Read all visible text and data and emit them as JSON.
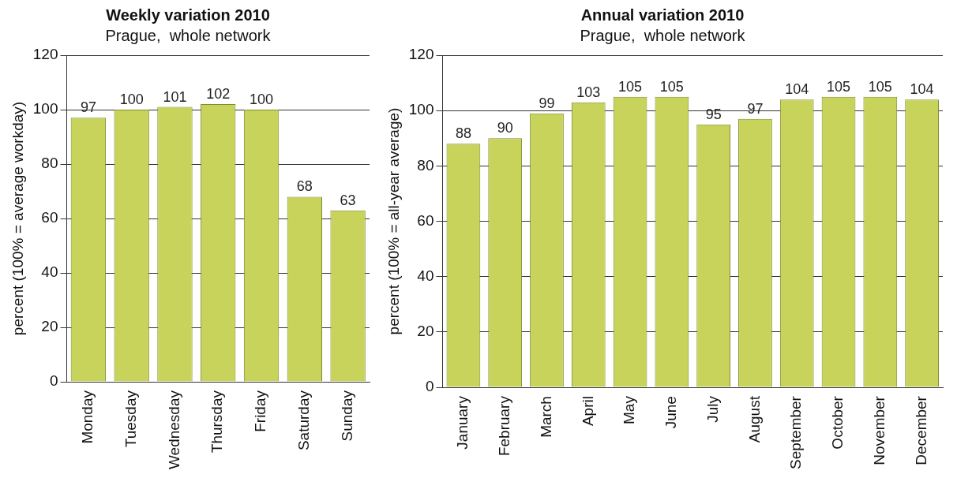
{
  "chart_data": [
    {
      "type": "bar",
      "title": "Weekly variation 2010",
      "subtitle": "Prague,  whole network",
      "ylabel": "percent (100% = average workday)",
      "categories": [
        "Monday",
        "Tuesday",
        "Wednesday",
        "Thursday",
        "Friday",
        "Saturday",
        "Sunday"
      ],
      "values": [
        97,
        100,
        101,
        102,
        100,
        68,
        63
      ],
      "color": "#c8d35c",
      "ylim": [
        0,
        120
      ],
      "yticks": [
        0,
        20,
        40,
        60,
        80,
        100,
        120
      ],
      "grid": "y",
      "data_labels": true,
      "legend": false
    },
    {
      "type": "bar",
      "title": "Annual variation 2010",
      "subtitle": "Prague,  whole network",
      "ylabel": "percent (100% = all-year average)",
      "categories": [
        "January",
        "February",
        "March",
        "April",
        "May",
        "June",
        "July",
        "August",
        "September",
        "October",
        "November",
        "December"
      ],
      "values": [
        88,
        90,
        99,
        103,
        105,
        105,
        95,
        97,
        104,
        105,
        105,
        104
      ],
      "color": "#c8d35c",
      "ylim": [
        0,
        120
      ],
      "yticks": [
        0,
        20,
        40,
        60,
        80,
        100,
        120
      ],
      "grid": "y",
      "data_labels": true,
      "legend": false
    }
  ]
}
